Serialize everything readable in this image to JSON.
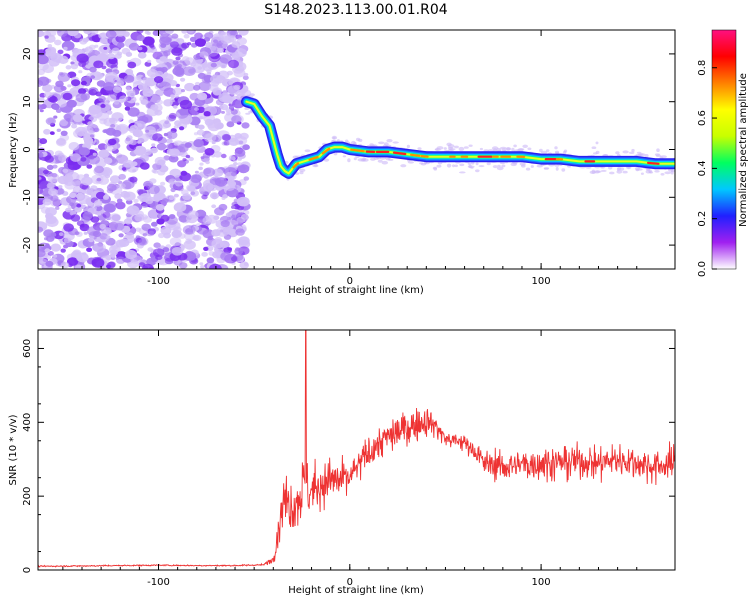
{
  "figure": {
    "title": "S148.2023.113.00.01.R04"
  },
  "chart_data": [
    {
      "type": "heatmap",
      "xlabel": "Height of straight line (km)",
      "ylabel": "Frequency (Hz)",
      "xlim": [
        -163,
        170
      ],
      "ylim": [
        -25,
        25
      ],
      "xticks": [
        -100,
        0,
        100
      ],
      "yticks": [
        -20,
        -10,
        0,
        10,
        20
      ],
      "grid": false,
      "noise_region_x": [
        -163,
        -54
      ],
      "ridge": {
        "x": [
          -54,
          -50,
          -46,
          -42,
          -40,
          -38,
          -36,
          -34,
          -32,
          -28,
          -24,
          -20,
          -16,
          -12,
          -8,
          -4,
          0,
          10,
          20,
          30,
          40,
          50,
          60,
          70,
          80,
          90,
          100,
          110,
          120,
          130,
          140,
          150,
          160,
          170
        ],
        "y": [
          10,
          9.5,
          7,
          5,
          2,
          -1,
          -3.5,
          -4.5,
          -5,
          -3,
          -2.5,
          -2,
          -1.5,
          0,
          0.5,
          0.5,
          0,
          -0.5,
          -0.5,
          -1,
          -1.5,
          -1.5,
          -1.5,
          -1.5,
          -1.5,
          -1.5,
          -2,
          -2,
          -2.5,
          -2.5,
          -2.5,
          -2.5,
          -3,
          -3
        ]
      },
      "colorbar": {
        "label": "Normalized spectral amplitude",
        "range": [
          0,
          0.95
        ],
        "ticks": [
          0.0,
          0.2,
          0.4,
          0.6,
          0.8
        ],
        "tick_labels": [
          "0.0",
          "0.2",
          "0.4",
          "0.6",
          "0.8"
        ],
        "colormap": [
          "#ffffff",
          "#a020f0",
          "#2020ff",
          "#00c8ff",
          "#00ff60",
          "#c8ff00",
          "#ffff00",
          "#ff8000",
          "#ff0000",
          "#ff1080"
        ]
      },
      "colors": {
        "speckle": "#7a2cf0",
        "ridge_core": "#ff2020"
      }
    },
    {
      "type": "line",
      "xlabel": "Height of straight line (km)",
      "ylabel": "SNR (10 * v/v)",
      "xlim": [
        -163,
        170
      ],
      "ylim": [
        0,
        650
      ],
      "xticks": [
        -100,
        0,
        100
      ],
      "yticks": [
        0,
        200,
        400,
        600
      ],
      "grid": false,
      "series": [
        {
          "color": "#ee3333",
          "x": [
            -163,
            -140,
            -120,
            -100,
            -80,
            -60,
            -45,
            -40,
            -37,
            -35,
            -32,
            -30,
            -26,
            -24,
            -23,
            -22,
            -20,
            -16,
            -10,
            -4,
            0,
            10,
            20,
            30,
            40,
            45,
            50,
            60,
            65,
            70,
            80,
            90,
            100,
            110,
            120,
            130,
            140,
            150,
            160,
            170
          ],
          "y": [
            10,
            11,
            12,
            13,
            12,
            12,
            14,
            30,
            120,
            190,
            185,
            175,
            200,
            240,
            650,
            200,
            215,
            230,
            245,
            240,
            250,
            320,
            360,
            385,
            405,
            390,
            355,
            345,
            325,
            290,
            280,
            285,
            290,
            290,
            295,
            290,
            300,
            290,
            280,
            290
          ],
          "noise": [
            1.5,
            1.5,
            1.5,
            1.5,
            1.5,
            1.5,
            2,
            10,
            45,
            65,
            65,
            65,
            65,
            60,
            10,
            60,
            55,
            55,
            55,
            50,
            40,
            40,
            40,
            40,
            35,
            30,
            20,
            20,
            25,
            30,
            35,
            40,
            40,
            40,
            40,
            40,
            40,
            40,
            40,
            40
          ]
        }
      ]
    }
  ]
}
